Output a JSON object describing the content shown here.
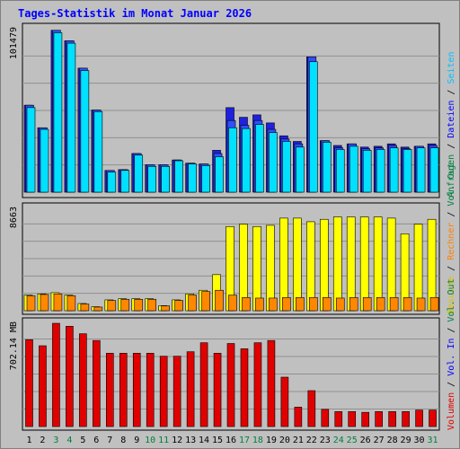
{
  "chart_data": {
    "type": "bar",
    "title": "Tages-Statistik im Monat Januar 2026",
    "categories": [
      "1",
      "2",
      "3",
      "4",
      "5",
      "6",
      "7",
      "8",
      "9",
      "10",
      "11",
      "12",
      "13",
      "14",
      "15",
      "16",
      "17",
      "18",
      "19",
      "20",
      "21",
      "22",
      "23",
      "24",
      "25",
      "26",
      "27",
      "28",
      "29",
      "30",
      "31"
    ],
    "weekend_days": [
      3,
      4,
      10,
      11,
      17,
      18,
      24,
      25,
      31
    ],
    "colors": {
      "anfragen": "#2020e0",
      "dateien": "#3050ff",
      "seiten": "#00e0ff",
      "besuche": "#ffff00",
      "rechner": "#ff8800",
      "volumen": "#e00000",
      "weekend_label": "#008040",
      "weekday_label": "#000000"
    },
    "panels": [
      {
        "name": "hits",
        "ymax_label": "101479",
        "ymax": 101479,
        "legend": [
          {
            "text": "Anfragen",
            "color": "#008040"
          },
          {
            "text": "Dateien",
            "color": "#0000ff"
          },
          {
            "text": "Seiten",
            "color": "#00c0ff"
          }
        ],
        "series": [
          {
            "name": "Anfragen",
            "values": [
              54000,
              40000,
              100500,
              94000,
              77000,
              51000,
              13500,
              14000,
              24000,
              17000,
              17000,
              20000,
              18000,
              17500,
              26000,
              52500,
              46500,
              48000,
              43000,
              35000,
              31500,
              84000,
              32000,
              29000,
              30000,
              28000,
              28500,
              30000,
              28000,
              28500,
              30000
            ]
          },
          {
            "name": "Dateien",
            "values": [
              54000,
              40000,
              100500,
              94000,
              77000,
              51000,
              13500,
              14000,
              24000,
              17000,
              17000,
              20000,
              18000,
              17500,
              24000,
              44500,
              41500,
              44500,
              39000,
              33000,
              30000,
              84000,
              32000,
              27500,
              30000,
              27000,
              27500,
              29000,
              27000,
              28500,
              29000
            ]
          },
          {
            "name": "Seiten",
            "values": [
              52500,
              39000,
              99000,
              92500,
              75500,
              50000,
              12500,
              13500,
              23000,
              16000,
              16000,
              19500,
              17500,
              16500,
              22000,
              40000,
              39500,
              42000,
              37000,
              31500,
              28000,
              81000,
              31000,
              26500,
              28500,
              26000,
              26500,
              27500,
              26500,
              27500,
              27500
            ]
          }
        ]
      },
      {
        "name": "visits",
        "ymax_label": "8663",
        "ymax": 8663,
        "legend": [
          {
            "text": "Besuche",
            "color": "#e0c000"
          },
          {
            "text": "Rechner",
            "color": "#ff8000"
          },
          {
            "text": "Vol. Out",
            "color": "#008040"
          }
        ],
        "series": [
          {
            "name": "Besuche",
            "values": [
              1300,
              1400,
              1500,
              1300,
              600,
              330,
              900,
              1000,
              1000,
              1000,
              420,
              900,
              1400,
              1700,
              3000,
              7000,
              7200,
              7000,
              7100,
              7700,
              7700,
              7400,
              7600,
              7800,
              7800,
              7800,
              7800,
              7700,
              6400,
              7200,
              7600
            ]
          },
          {
            "name": "Rechner",
            "values": [
              1250,
              1350,
              1400,
              1250,
              550,
              300,
              850,
              950,
              950,
              950,
              400,
              850,
              1300,
              1600,
              1700,
              1300,
              1100,
              1050,
              1050,
              1100,
              1100,
              1100,
              1100,
              1050,
              1100,
              1100,
              1100,
              1100,
              1100,
              1050,
              1100
            ]
          }
        ]
      },
      {
        "name": "volume",
        "ymax_label": "702.14 MB",
        "ymax": 702.14,
        "legend": [
          {
            "text": "Volumen",
            "color": "#e00000"
          },
          {
            "text": "Vol. In",
            "color": "#0000ff"
          },
          {
            "text": "Vol. Out",
            "color": "#008040"
          }
        ],
        "series": [
          {
            "name": "Volumen",
            "values": [
              580,
              540,
              690,
              670,
              620,
              575,
              490,
              490,
              490,
              490,
              470,
              470,
              500,
              560,
              490,
              555,
              520,
              560,
              575,
              330,
              130,
              240,
              115,
              100,
              100,
              95,
              100,
              100,
              100,
              110,
              110
            ]
          }
        ]
      }
    ]
  }
}
